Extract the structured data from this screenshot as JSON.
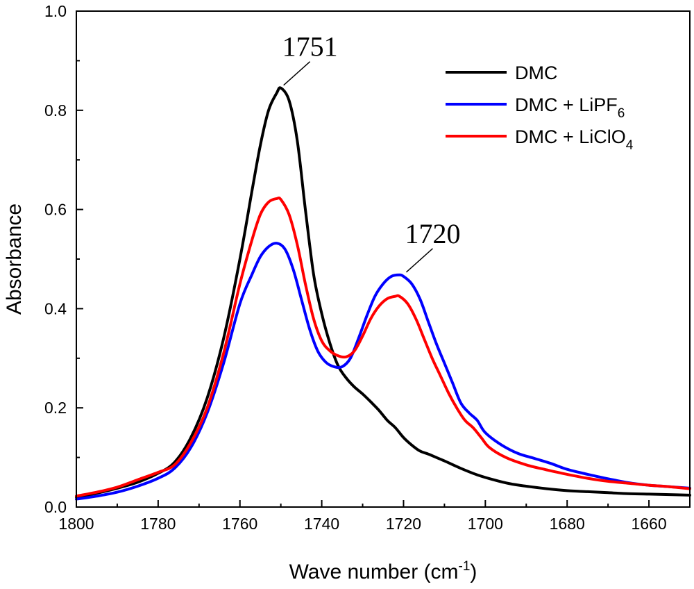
{
  "chart_data": {
    "type": "line",
    "title": "",
    "xlabel": "Wave number (cm",
    "xlabel_sup": "-1",
    "xlabel_end": ")",
    "ylabel": "Absorbance",
    "xlim": [
      1800,
      1650
    ],
    "ylim": [
      0.0,
      1.0
    ],
    "x_reversed": true,
    "x_ticks": [
      1800,
      1780,
      1760,
      1740,
      1720,
      1700,
      1680,
      1660
    ],
    "x_tick_labels": [
      "1800",
      "1780",
      "1760",
      "1740",
      "1720",
      "1700",
      "1680",
      "1660"
    ],
    "y_ticks": [
      0.0,
      0.2,
      0.4,
      0.6,
      0.8,
      1.0
    ],
    "y_tick_labels": [
      "0.0",
      "0.2",
      "0.4",
      "0.6",
      "0.8",
      "1.0"
    ],
    "legend_position": "top-right",
    "series": [
      {
        "name": "DMC",
        "label_main": "DMC",
        "label_sub": "",
        "color": "#000000",
        "x": [
          1800,
          1795,
          1790,
          1785,
          1780,
          1776,
          1772,
          1768,
          1764,
          1760,
          1757,
          1755,
          1753,
          1751,
          1750,
          1748,
          1746,
          1744,
          1742,
          1740,
          1738,
          1736,
          1734,
          1732,
          1730,
          1728,
          1726,
          1724,
          1722,
          1720,
          1718,
          1716,
          1714,
          1712,
          1710,
          1706,
          1702,
          1698,
          1694,
          1690,
          1685,
          1680,
          1675,
          1670,
          1665,
          1660,
          1655,
          1650
        ],
        "y": [
          0.02,
          0.028,
          0.038,
          0.05,
          0.068,
          0.09,
          0.14,
          0.22,
          0.34,
          0.5,
          0.64,
          0.73,
          0.8,
          0.835,
          0.845,
          0.82,
          0.74,
          0.6,
          0.47,
          0.39,
          0.33,
          0.285,
          0.26,
          0.242,
          0.228,
          0.212,
          0.195,
          0.175,
          0.16,
          0.14,
          0.125,
          0.113,
          0.107,
          0.1,
          0.093,
          0.078,
          0.065,
          0.055,
          0.047,
          0.042,
          0.037,
          0.033,
          0.031,
          0.029,
          0.027,
          0.026,
          0.025,
          0.024
        ]
      },
      {
        "name": "DMC + LiPF6",
        "label_main": "DMC + LiPF",
        "label_sub": "6",
        "color": "#0000ff",
        "x": [
          1800,
          1795,
          1790,
          1785,
          1780,
          1776,
          1772,
          1768,
          1764,
          1760,
          1757,
          1755,
          1753,
          1751,
          1749,
          1747,
          1745,
          1743,
          1741,
          1739,
          1737,
          1735,
          1733,
          1731,
          1729,
          1727,
          1725,
          1723,
          1721,
          1720,
          1718,
          1716,
          1714,
          1712,
          1710,
          1708,
          1706,
          1704,
          1702,
          1700,
          1696,
          1692,
          1688,
          1684,
          1680,
          1675,
          1670,
          1665,
          1660,
          1655,
          1650
        ],
        "y": [
          0.016,
          0.022,
          0.03,
          0.042,
          0.058,
          0.078,
          0.12,
          0.19,
          0.29,
          0.41,
          0.47,
          0.505,
          0.525,
          0.532,
          0.52,
          0.48,
          0.42,
          0.36,
          0.315,
          0.292,
          0.283,
          0.283,
          0.3,
          0.34,
          0.385,
          0.425,
          0.45,
          0.465,
          0.468,
          0.465,
          0.45,
          0.42,
          0.375,
          0.33,
          0.29,
          0.25,
          0.21,
          0.19,
          0.175,
          0.15,
          0.125,
          0.108,
          0.098,
          0.088,
          0.076,
          0.066,
          0.057,
          0.049,
          0.044,
          0.041,
          0.038
        ]
      },
      {
        "name": "DMC + LiClO4",
        "label_main": "DMC + LiClO",
        "label_sub": "4",
        "color": "#ff0000",
        "x": [
          1800,
          1795,
          1790,
          1785,
          1780,
          1776,
          1772,
          1768,
          1764,
          1760,
          1757,
          1755,
          1753,
          1751,
          1750,
          1748,
          1746,
          1744,
          1742,
          1740,
          1738,
          1736,
          1734,
          1732,
          1730,
          1728,
          1726,
          1724,
          1722,
          1721,
          1719,
          1717,
          1715,
          1713,
          1711,
          1709,
          1707,
          1705,
          1703,
          1701,
          1699,
          1695,
          1690,
          1685,
          1680,
          1675,
          1670,
          1665,
          1660,
          1655,
          1650
        ],
        "y": [
          0.022,
          0.03,
          0.04,
          0.055,
          0.07,
          0.085,
          0.13,
          0.2,
          0.31,
          0.45,
          0.54,
          0.59,
          0.615,
          0.622,
          0.62,
          0.59,
          0.53,
          0.45,
          0.38,
          0.335,
          0.315,
          0.305,
          0.303,
          0.315,
          0.345,
          0.38,
          0.405,
          0.42,
          0.425,
          0.425,
          0.41,
          0.38,
          0.34,
          0.3,
          0.265,
          0.23,
          0.2,
          0.175,
          0.16,
          0.14,
          0.12,
          0.1,
          0.085,
          0.075,
          0.066,
          0.058,
          0.052,
          0.048,
          0.044,
          0.041,
          0.037
        ]
      }
    ],
    "annotations": [
      {
        "text": "1751",
        "x": 1750,
        "y": 0.845
      },
      {
        "text": "1720",
        "x": 1720,
        "y": 0.468
      }
    ]
  }
}
